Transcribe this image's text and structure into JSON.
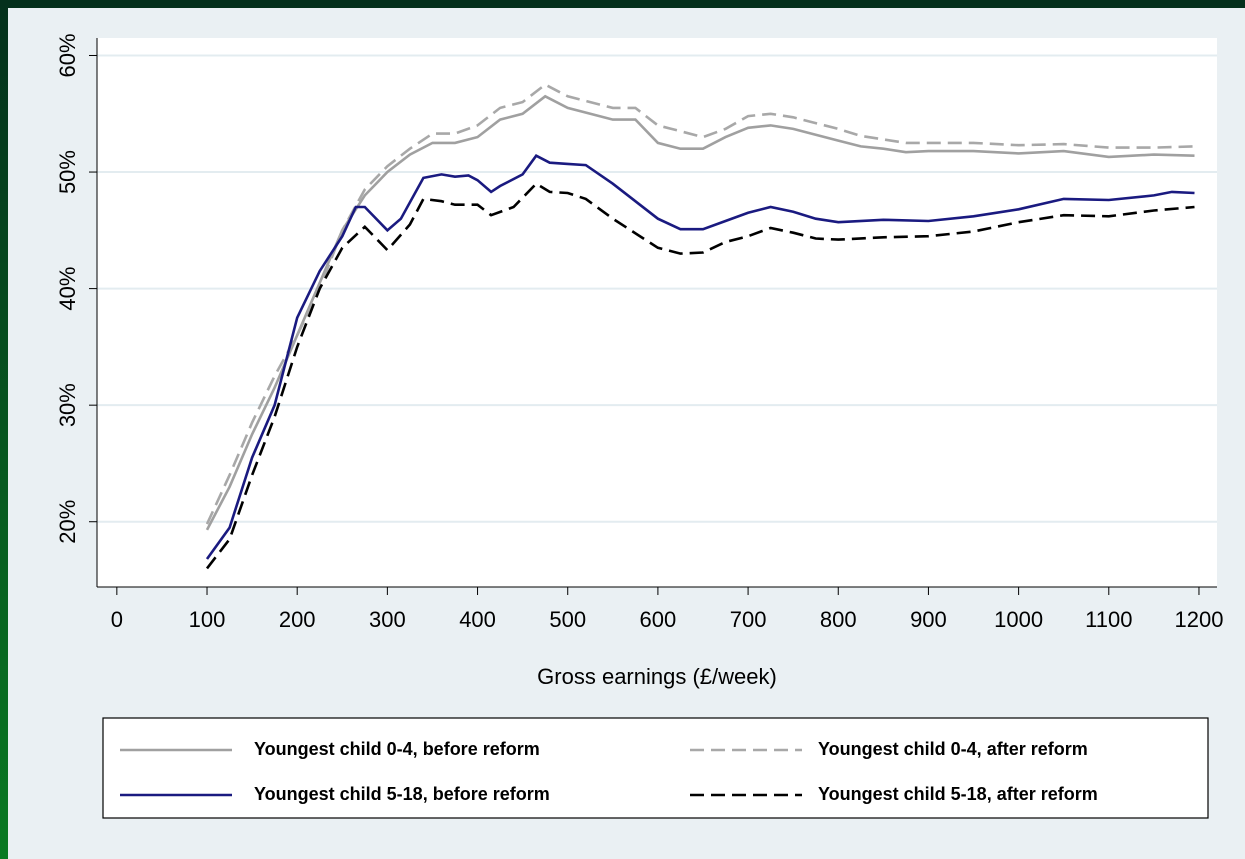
{
  "chart_data": {
    "type": "line",
    "x_label": "Gross earnings (£/week)",
    "xlim": [
      -22,
      1220
    ],
    "xticks": [
      0,
      100,
      200,
      300,
      400,
      500,
      600,
      700,
      800,
      900,
      1000,
      1100,
      1200
    ],
    "ylim": [
      14.4,
      61.5
    ],
    "yticks": [
      {
        "value": 20,
        "label": "20%"
      },
      {
        "value": 30,
        "label": "30%"
      },
      {
        "value": 40,
        "label": "40%"
      },
      {
        "value": 50,
        "label": "50%"
      },
      {
        "value": 60,
        "label": "60%"
      }
    ],
    "grid": true,
    "series": [
      {
        "name": "Youngest child 0-4, before reform",
        "color": "#a0a0a0",
        "dash": "solid",
        "x": [
          100,
          125,
          150,
          175,
          200,
          225,
          250,
          275,
          300,
          325,
          350,
          375,
          400,
          425,
          450,
          475,
          500,
          525,
          550,
          575,
          600,
          625,
          650,
          675,
          700,
          725,
          750,
          775,
          800,
          825,
          850,
          875,
          900,
          950,
          1000,
          1050,
          1100,
          1150,
          1195
        ],
        "values": [
          19.3,
          23,
          27.5,
          31.5,
          36,
          40.5,
          45,
          48,
          50,
          51.5,
          52.5,
          52.5,
          53,
          54.5,
          55,
          56.5,
          55.5,
          55,
          54.5,
          54.5,
          52.5,
          52,
          52,
          53,
          53.8,
          54,
          53.7,
          53.2,
          52.7,
          52.2,
          52,
          51.7,
          51.8,
          51.8,
          51.6,
          51.8,
          51.3,
          51.5,
          51.4
        ]
      },
      {
        "name": "Youngest child 0-4, after reform",
        "color": "#a8a8a8",
        "dash": "dashed",
        "x": [
          100,
          125,
          150,
          175,
          200,
          225,
          250,
          275,
          300,
          325,
          350,
          375,
          400,
          425,
          450,
          475,
          500,
          525,
          550,
          575,
          600,
          625,
          650,
          675,
          700,
          725,
          750,
          775,
          800,
          825,
          850,
          875,
          900,
          950,
          1000,
          1050,
          1100,
          1150,
          1195
        ],
        "values": [
          19.8,
          24,
          28.5,
          32.5,
          36,
          40,
          45,
          48.5,
          50.5,
          52,
          53.3,
          53.3,
          54,
          55.5,
          56,
          57.5,
          56.5,
          56,
          55.5,
          55.5,
          54,
          53.5,
          53,
          53.7,
          54.8,
          55,
          54.7,
          54.2,
          53.7,
          53.1,
          52.8,
          52.5,
          52.5,
          52.5,
          52.3,
          52.4,
          52.1,
          52.1,
          52.2
        ]
      },
      {
        "name": "Youngest child 5-18, before reform",
        "color": "#1a1a80",
        "dash": "solid",
        "x": [
          100,
          125,
          150,
          175,
          200,
          225,
          250,
          265,
          275,
          300,
          315,
          340,
          360,
          375,
          390,
          400,
          415,
          425,
          450,
          465,
          480,
          500,
          520,
          550,
          600,
          625,
          650,
          675,
          700,
          725,
          750,
          775,
          800,
          850,
          900,
          950,
          1000,
          1050,
          1100,
          1150,
          1170,
          1195
        ],
        "values": [
          16.8,
          19.5,
          25.5,
          30,
          37.5,
          41.5,
          44.5,
          47,
          47,
          45,
          46,
          49.5,
          49.8,
          49.6,
          49.7,
          49.3,
          48.3,
          48.8,
          49.8,
          51.4,
          50.8,
          50.7,
          50.6,
          49,
          46,
          45.1,
          45.1,
          45.8,
          46.5,
          47,
          46.6,
          46,
          45.7,
          45.9,
          45.8,
          46.2,
          46.8,
          47.7,
          47.6,
          48,
          48.3,
          48.2
        ]
      },
      {
        "name": "Youngest child 5-18, after reform",
        "color": "#000000",
        "dash": "dashed",
        "x": [
          100,
          125,
          150,
          175,
          200,
          225,
          250,
          275,
          300,
          325,
          340,
          360,
          375,
          400,
          415,
          440,
          465,
          480,
          500,
          520,
          550,
          600,
          625,
          650,
          675,
          700,
          725,
          750,
          775,
          800,
          850,
          900,
          950,
          1000,
          1050,
          1100,
          1150,
          1195
        ],
        "values": [
          16,
          18.5,
          24,
          29,
          35,
          40,
          43.5,
          45.3,
          43.3,
          45.5,
          47.7,
          47.5,
          47.2,
          47.2,
          46.3,
          47,
          49,
          48.3,
          48.2,
          47.7,
          46,
          43.5,
          43,
          43.1,
          44,
          44.5,
          45.2,
          44.8,
          44.3,
          44.2,
          44.4,
          44.5,
          44.9,
          45.7,
          46.3,
          46.2,
          46.7,
          47
        ]
      }
    ]
  }
}
